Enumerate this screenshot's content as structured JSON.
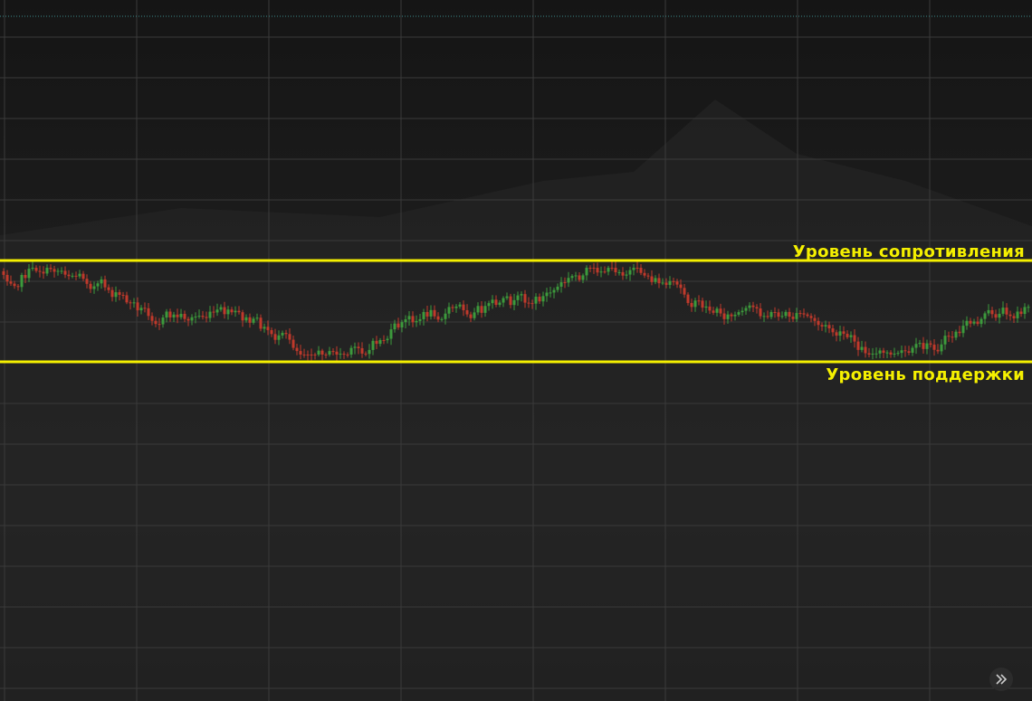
{
  "annotations": {
    "resistance": "Уровень сопротивления",
    "support": "Уровень поддержки"
  }
}
